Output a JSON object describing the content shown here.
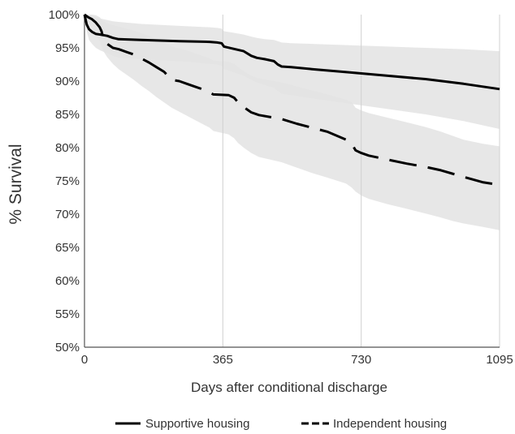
{
  "chart_data": {
    "type": "line",
    "title": "",
    "xlabel": "Days after conditional discharge",
    "ylabel": "% Survival",
    "xlim": [
      0,
      1095
    ],
    "ylim": [
      50,
      100
    ],
    "x_ticks": [
      0,
      365,
      730,
      1095
    ],
    "x_tick_labels": [
      "0",
      "365",
      "730",
      "1095"
    ],
    "y_ticks": [
      50,
      55,
      60,
      65,
      70,
      75,
      80,
      85,
      90,
      95,
      100
    ],
    "y_tick_labels": [
      "50%",
      "55%",
      "60%",
      "65%",
      "70%",
      "75%",
      "80%",
      "85%",
      "90%",
      "95%",
      "100%"
    ],
    "grid": {
      "vertical": true,
      "horizontal": false
    },
    "legend_position": "bottom",
    "colors": {
      "line": "#000000",
      "band": "#e3e3e3",
      "grid": "#d0d0d0",
      "axis": "#555555"
    },
    "series": [
      {
        "name": "Supportive housing",
        "style": "solid",
        "x": [
          0,
          6,
          12,
          20,
          30,
          42,
          60,
          75,
          90,
          150,
          250,
          330,
          350,
          362,
          368,
          390,
          420,
          440,
          455,
          475,
          500,
          510,
          520,
          545,
          600,
          700,
          800,
          900,
          1000,
          1095
        ],
        "y": [
          100,
          98.5,
          97.8,
          97.4,
          97.1,
          97.0,
          96.8,
          96.5,
          96.3,
          96.2,
          96.0,
          95.9,
          95.8,
          95.7,
          95.2,
          94.9,
          94.5,
          93.8,
          93.5,
          93.3,
          93.0,
          92.5,
          92.2,
          92.1,
          91.8,
          91.3,
          90.8,
          90.3,
          89.6,
          88.8
        ],
        "ci_upper": [
          100,
          100,
          99.9,
          99.8,
          99.6,
          99.4,
          99.2,
          99.0,
          98.9,
          98.6,
          98.3,
          98.1,
          98.0,
          97.9,
          97.5,
          97.3,
          97.0,
          96.7,
          96.5,
          96.3,
          96.2,
          96.0,
          95.8,
          95.7,
          95.6,
          95.4,
          95.2,
          95.0,
          94.8,
          94.5
        ],
        "ci_lower": [
          100,
          97.5,
          96.2,
          95.6,
          95.0,
          94.6,
          94.2,
          93.8,
          93.5,
          93.3,
          93.0,
          92.6,
          92.5,
          92.3,
          91.8,
          91.4,
          90.8,
          90.2,
          89.8,
          89.4,
          89.0,
          88.5,
          88.1,
          87.9,
          87.4,
          86.6,
          85.8,
          85.0,
          84.0,
          82.8
        ]
      },
      {
        "name": "Independent housing",
        "style": "dashed",
        "x": [
          0,
          10,
          20,
          30,
          40,
          45,
          50,
          60,
          75,
          90,
          110,
          130,
          150,
          170,
          190,
          210,
          230,
          250,
          270,
          290,
          310,
          330,
          340,
          380,
          395,
          405,
          420,
          440,
          460,
          520,
          560,
          600,
          640,
          690,
          705,
          715,
          730,
          750,
          800,
          850,
          900,
          940,
          970,
          1000,
          1050,
          1095
        ],
        "y": [
          100,
          99.6,
          99.3,
          98.8,
          98.1,
          97.5,
          96.3,
          95.6,
          95.0,
          94.8,
          94.4,
          94.0,
          93.4,
          92.8,
          92.1,
          91.4,
          90.2,
          90.0,
          89.6,
          89.2,
          88.8,
          88.3,
          88.0,
          87.9,
          87.5,
          86.8,
          86.1,
          85.3,
          84.9,
          84.3,
          83.6,
          83.0,
          82.4,
          81.2,
          80.6,
          79.6,
          79.2,
          78.8,
          78.2,
          77.6,
          77.1,
          76.6,
          76.1,
          75.6,
          74.8,
          74.4
        ],
        "ci_upper": [
          100,
          100,
          100,
          99.9,
          99.6,
          99.3,
          99.0,
          98.7,
          98.4,
          98.2,
          97.9,
          97.6,
          97.2,
          96.8,
          96.3,
          95.8,
          95.2,
          94.9,
          94.6,
          94.2,
          93.8,
          93.4,
          93.1,
          92.9,
          92.6,
          92.1,
          91.5,
          90.8,
          90.4,
          89.8,
          89.2,
          88.6,
          88.0,
          87.2,
          86.8,
          86.0,
          85.6,
          85.2,
          84.5,
          83.8,
          83.1,
          82.4,
          81.8,
          81.2,
          80.6,
          80.2
        ],
        "ci_lower": [
          100,
          99.0,
          98.0,
          97.0,
          96.0,
          95.3,
          94.5,
          93.6,
          92.6,
          91.8,
          91.0,
          90.2,
          89.3,
          88.5,
          87.6,
          86.8,
          86.0,
          85.4,
          84.8,
          84.2,
          83.6,
          83.0,
          82.5,
          82.0,
          81.4,
          80.7,
          80.0,
          79.2,
          78.6,
          77.8,
          77.0,
          76.2,
          75.5,
          74.6,
          74.0,
          73.4,
          72.8,
          72.3,
          71.5,
          70.8,
          70.1,
          69.5,
          69.0,
          68.6,
          68.1,
          67.6
        ]
      }
    ]
  }
}
